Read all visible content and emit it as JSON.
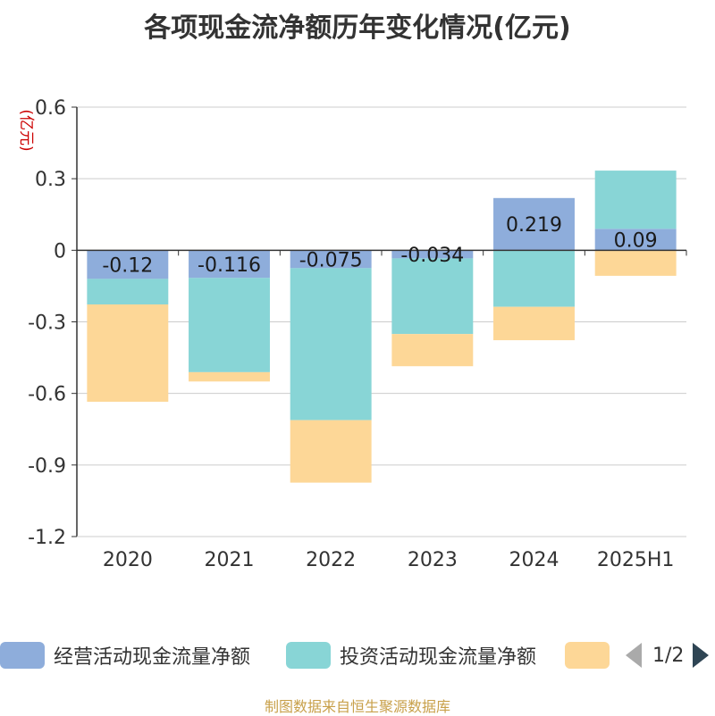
{
  "title": "各项现金流净额历年变化情况(亿元)",
  "source": "制图数据来自恒生聚源数据库",
  "legend": {
    "items": [
      {
        "label": "经营活动现金流量净额",
        "color": "#8eaddb"
      },
      {
        "label": "投资活动现金流量净额",
        "color": "#88d5d6"
      },
      {
        "label": "",
        "color": "#fdd797"
      }
    ],
    "page": "1/2"
  },
  "chart_data": {
    "type": "bar",
    "stacked": true,
    "categories": [
      "2020",
      "2021",
      "2022",
      "2023",
      "2024",
      "2025H1"
    ],
    "ylabel": "(亿元)",
    "ylim": [
      -1.2,
      0.6
    ],
    "yticks": [
      "0.6",
      "0.3",
      "0",
      "-0.3",
      "-0.6",
      "-0.9",
      "-1.2"
    ],
    "yticks_values": [
      0.6,
      0.3,
      0,
      -0.3,
      -0.6,
      -0.9,
      -1.2
    ],
    "grid": true,
    "legend_position": "bottom",
    "series": [
      {
        "name": "经营活动现金流量净额",
        "color": "#8eaddb",
        "values": [
          -0.12,
          -0.116,
          -0.075,
          -0.034,
          0.219,
          0.09
        ],
        "labels": [
          "-0.12",
          "-0.116",
          "-0.075",
          "-0.034",
          "0.219",
          "0.09"
        ]
      },
      {
        "name": "投资活动现金流量净额",
        "color": "#88d5d6",
        "values": [
          -0.107,
          -0.395,
          -0.637,
          -0.317,
          -0.237,
          0.244
        ]
      },
      {
        "color": "#fdd797",
        "values": [
          -0.408,
          -0.039,
          -0.262,
          -0.135,
          -0.14,
          -0.107
        ]
      }
    ]
  }
}
